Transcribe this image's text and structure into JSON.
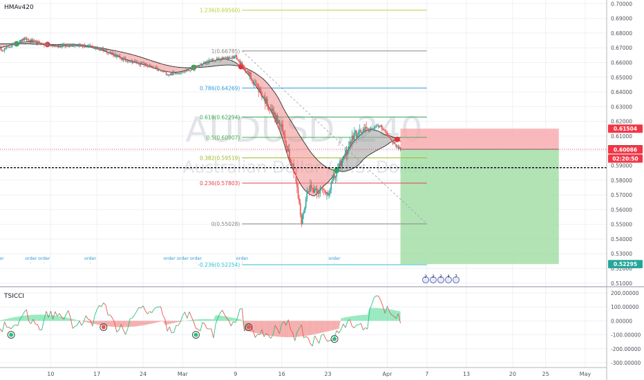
{
  "chart_data": [
    {
      "type": "candlestick",
      "title": "AUDUSD, 240",
      "subtitle": "Australian Dollar / U.S. Dollar",
      "indicator": "HMAv420",
      "x_axis": {
        "tick_labels": [
          "10",
          "17",
          "24",
          "Mar",
          "9",
          "16",
          "23",
          "Apr",
          "7",
          "13",
          "20",
          "25",
          "May"
        ]
      },
      "y_axis": {
        "range": [
          0.5085,
          0.7025
        ],
        "tick_values": [
          0.51,
          0.52,
          0.53,
          0.54,
          0.55,
          0.56,
          0.57,
          0.58,
          0.59,
          0.6,
          0.61,
          0.62,
          0.63,
          0.64,
          0.65,
          0.66,
          0.67,
          0.68,
          0.69,
          0.7
        ],
        "tick_labels": [
          "0.51000",
          "0.52000",
          "0.53000",
          "0.54000",
          "0.55000",
          "0.56000",
          "0.57000",
          "0.58000",
          "0.59000",
          "0.60000",
          "0.61000",
          "0.62000",
          "0.63000",
          "0.64000",
          "0.65000",
          "0.66000",
          "0.67000",
          "0.68000",
          "0.69000",
          "0.70000"
        ]
      },
      "price_anchors": [
        {
          "date": "2020-02-03",
          "price": 0.669
        },
        {
          "date": "2020-02-06",
          "price": 0.676
        },
        {
          "date": "2020-02-10",
          "price": 0.671
        },
        {
          "date": "2020-02-14",
          "price": 0.672
        },
        {
          "date": "2020-02-18",
          "price": 0.669
        },
        {
          "date": "2020-02-21",
          "price": 0.662
        },
        {
          "date": "2020-02-24",
          "price": 0.659
        },
        {
          "date": "2020-02-28",
          "price": 0.652
        },
        {
          "date": "2020-03-02",
          "price": 0.655
        },
        {
          "date": "2020-03-05",
          "price": 0.661
        },
        {
          "date": "2020-03-09",
          "price": 0.664
        },
        {
          "date": "2020-03-12",
          "price": 0.646
        },
        {
          "date": "2020-03-16",
          "price": 0.615
        },
        {
          "date": "2020-03-18",
          "price": 0.585
        },
        {
          "date": "2020-03-19",
          "price": 0.551
        },
        {
          "date": "2020-03-20",
          "price": 0.575
        },
        {
          "date": "2020-03-23",
          "price": 0.572
        },
        {
          "date": "2020-03-25",
          "price": 0.592
        },
        {
          "date": "2020-03-27",
          "price": 0.611
        },
        {
          "date": "2020-03-31",
          "price": 0.617
        },
        {
          "date": "2020-04-02",
          "price": 0.605
        },
        {
          "date": "2020-04-03",
          "price": 0.601
        }
      ],
      "fibonacci": [
        {
          "label": "1.236(0.69560)",
          "value": 0.6956,
          "color": "#b5d334"
        },
        {
          "label": "1(0.66785)",
          "value": 0.66785,
          "color": "#888888"
        },
        {
          "label": "0.786(0.64269)",
          "value": 0.64269,
          "color": "#2e9ad6"
        },
        {
          "label": "0.618(0.62294)",
          "value": 0.62294,
          "color": "#2fa850"
        },
        {
          "label": "0.5(0.60907)",
          "value": 0.60907,
          "color": "#4caf50"
        },
        {
          "label": "0.382(0.59519)",
          "value": 0.59519,
          "color": "#a0b820"
        },
        {
          "label": "0.236(0.57803)",
          "value": 0.57803,
          "color": "#e0404a"
        },
        {
          "label": "0(0.55028)",
          "value": 0.55028,
          "color": "#888888"
        },
        {
          "label": "-0.236(0.52254)",
          "value": 0.52254,
          "color": "#2ebfcf"
        }
      ],
      "position": {
        "side": "short",
        "entry": 0.601,
        "stop": 0.61504,
        "target": 0.52295,
        "start_date": "2020-04-03",
        "end_date": "2020-04-27",
        "loss_color": "#f7a8ab",
        "profit_color": "#9fdca3"
      },
      "price_labels": [
        {
          "text": "0.61504",
          "value": 0.61504,
          "bg": "#f23645",
          "fg": "#ffffff"
        },
        {
          "text": "0.60100",
          "value": 0.601,
          "bg": "#131722",
          "fg": "#ffffff"
        },
        {
          "text": "0.60086",
          "value": 0.60086,
          "bg": "#f23645",
          "fg": "#ffffff"
        },
        {
          "text": "02:20:50",
          "value": 0.5947,
          "bg": "#f23645",
          "fg": "#ffffff"
        },
        {
          "text": "0.52295",
          "value": 0.52295,
          "bg": "#26a69a",
          "fg": "#ffffff"
        }
      ],
      "horizontal_lines": [
        {
          "value": 0.601,
          "style": "dotted",
          "color": "#f23645"
        },
        {
          "value": 0.5885,
          "style": "dashed",
          "color": "#000000"
        }
      ],
      "order_labels": [
        "order",
        "order",
        "order",
        "order",
        "order",
        "order",
        "order",
        "order",
        "order"
      ],
      "event_markers": [
        "2",
        "2",
        "2",
        "4",
        "7"
      ],
      "colors": {
        "up": "#26a69a",
        "down": "#ef5350",
        "grid": "#eef0f3"
      }
    },
    {
      "type": "line",
      "title": "TSICCI",
      "y_axis": {
        "range": [
          -335,
          235
        ],
        "tick_values": [
          200,
          100,
          0,
          -100,
          -200,
          -300
        ],
        "tick_labels": [
          "200.00000",
          "100.00000",
          "0.00000",
          "-100.00000",
          "-200.00000",
          "-300.00000"
        ]
      },
      "series": [
        {
          "color": "#ef5350"
        },
        {
          "color": "#26a69a"
        }
      ]
    }
  ]
}
